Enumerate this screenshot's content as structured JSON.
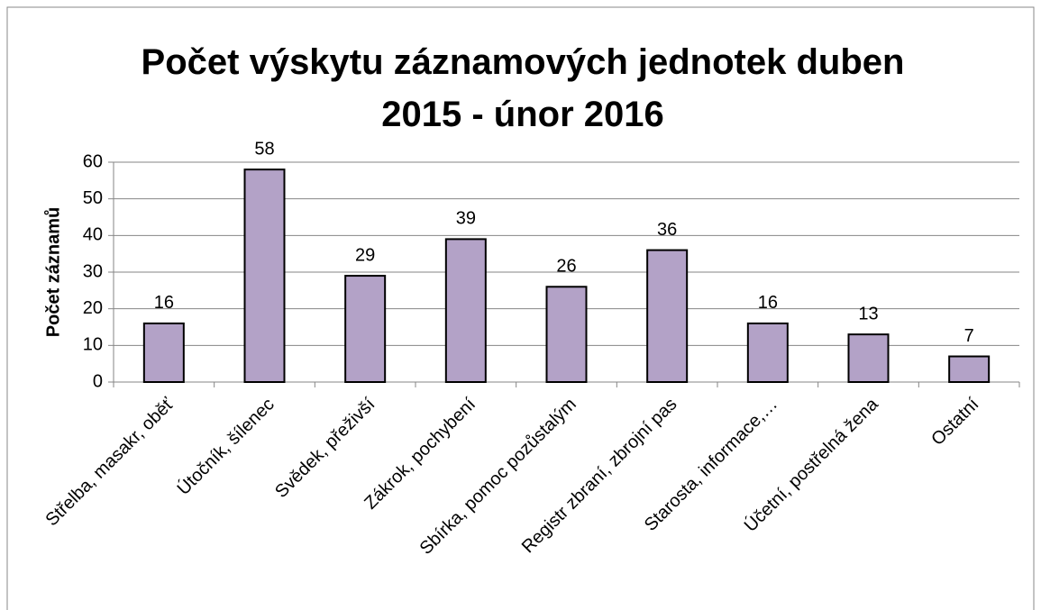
{
  "chart_data": {
    "type": "bar",
    "title": "Počet výskytu záznamových jednotek duben 2015 - únor 2016",
    "y_axis_label": "Počet záznamů",
    "categories": [
      "Střelba, masakr, oběť",
      "Útočník, šílenec",
      "Svědek, přeživší",
      "Zákrok, pochybení",
      "Sbírka, pomoc pozůstalým",
      "Registr zbraní, zbrojní pas",
      "Starosta, informace,…",
      "Účetní, postřelná žena",
      "Ostatní"
    ],
    "values": [
      16,
      58,
      29,
      39,
      26,
      36,
      16,
      13,
      7
    ],
    "color": "#b3a2c7",
    "ylim": [
      0,
      60
    ],
    "yticks": [
      0,
      10,
      20,
      30,
      40,
      50,
      60
    ],
    "grid": true
  }
}
